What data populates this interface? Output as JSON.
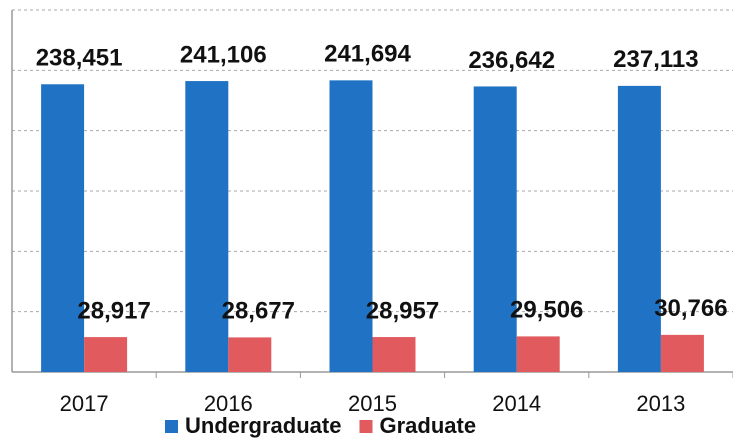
{
  "chart_data": {
    "type": "bar",
    "categories": [
      "2017",
      "2016",
      "2015",
      "2014",
      "2013"
    ],
    "series": [
      {
        "name": "Undergraduate",
        "color": "#1f72c4",
        "values": [
          238451,
          241106,
          241694,
          236642,
          237113
        ],
        "value_labels": [
          "238,451",
          "241,106",
          "241,694",
          "236,642",
          "237,113"
        ]
      },
      {
        "name": "Graduate",
        "color": "#e05a5e",
        "values": [
          28917,
          28677,
          28957,
          29506,
          30766
        ],
        "value_labels": [
          "28,917",
          "28,677",
          "28,957",
          "29,506",
          "30,766"
        ]
      }
    ],
    "ylim": [
      0,
      300000
    ],
    "yticks": [
      0,
      50000,
      100000,
      150000,
      200000,
      250000,
      300000
    ],
    "grid": true,
    "legend": "bottom"
  }
}
